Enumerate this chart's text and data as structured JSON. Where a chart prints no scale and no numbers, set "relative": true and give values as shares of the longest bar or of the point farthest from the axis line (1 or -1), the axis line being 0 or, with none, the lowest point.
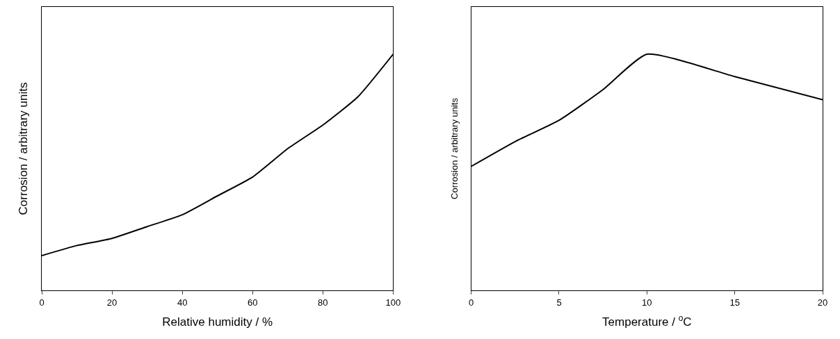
{
  "chart_data": [
    {
      "type": "line",
      "relative": true,
      "xlabel": "Relative humidity / %",
      "ylabel": "Corrosion / arbitrary units",
      "x": [
        0,
        10,
        20,
        30,
        40,
        50,
        60,
        70,
        80,
        90,
        100
      ],
      "values": [
        0.147,
        0.19,
        0.22,
        0.27,
        0.32,
        0.4,
        0.48,
        0.6,
        0.7,
        0.82,
        1.0
      ],
      "color": "#000000",
      "xlim": [
        0,
        100
      ],
      "xticks": [
        0,
        20,
        40,
        60,
        80,
        100
      ],
      "tick_labels": "x"
    },
    {
      "type": "line",
      "relative": true,
      "xlabel": "Temperature / $^{o}$C",
      "ylabel": "Corrosion / arbitrary units",
      "x": [
        0,
        2.5,
        5,
        7.5,
        10,
        15,
        20
      ],
      "values": [
        0.525,
        0.63,
        0.72,
        0.85,
        1.0,
        0.905,
        0.807
      ],
      "color": "#000000",
      "xlim": [
        0,
        20
      ],
      "xticks": [
        0,
        5,
        10,
        15,
        20
      ],
      "tick_labels": "x"
    }
  ]
}
